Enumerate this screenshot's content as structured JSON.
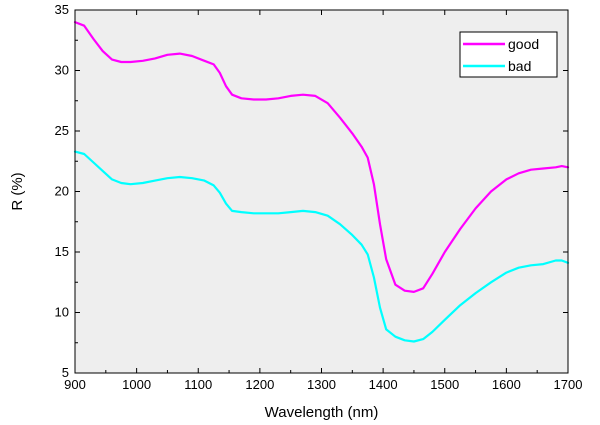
{
  "chart_data": {
    "type": "line",
    "title": "",
    "xlabel": "Wavelength (nm)",
    "ylabel": "R (%)",
    "xlim": [
      900,
      1700
    ],
    "ylim": [
      5,
      35
    ],
    "x_ticks": [
      900,
      1000,
      1100,
      1200,
      1300,
      1400,
      1500,
      1600,
      1700
    ],
    "y_ticks": [
      5,
      10,
      15,
      20,
      25,
      30,
      35
    ],
    "x_tick_labels": [
      "900",
      "1000",
      "1100",
      "1200",
      "1300",
      "1400",
      "1500",
      "1600",
      "1700"
    ],
    "y_tick_labels": [
      "5",
      "10",
      "15",
      "20",
      "25",
      "30",
      "35"
    ],
    "grid": false,
    "legend_position": "top-right",
    "plot_background": "#eeeeee",
    "series": [
      {
        "name": "good",
        "color": "#ff00ff",
        "x": [
          900,
          915,
          930,
          945,
          960,
          975,
          990,
          1010,
          1030,
          1050,
          1070,
          1090,
          1110,
          1125,
          1135,
          1145,
          1155,
          1170,
          1190,
          1210,
          1230,
          1250,
          1270,
          1290,
          1310,
          1330,
          1350,
          1365,
          1375,
          1385,
          1395,
          1405,
          1420,
          1435,
          1450,
          1465,
          1480,
          1500,
          1525,
          1550,
          1575,
          1600,
          1620,
          1640,
          1660,
          1680,
          1690,
          1700
        ],
        "values": [
          34.0,
          33.7,
          32.6,
          31.6,
          30.9,
          30.7,
          30.7,
          30.8,
          31.0,
          31.3,
          31.4,
          31.2,
          30.8,
          30.5,
          29.8,
          28.7,
          28.0,
          27.7,
          27.6,
          27.6,
          27.7,
          27.9,
          28.0,
          27.9,
          27.3,
          26.1,
          24.8,
          23.7,
          22.8,
          20.6,
          17.3,
          14.4,
          12.3,
          11.8,
          11.7,
          12.0,
          13.2,
          15.0,
          16.9,
          18.6,
          20.0,
          21.0,
          21.5,
          21.8,
          21.9,
          22.0,
          22.1,
          22.0
        ]
      },
      {
        "name": "bad",
        "color": "#00ffff",
        "x": [
          900,
          915,
          930,
          945,
          960,
          975,
          990,
          1010,
          1030,
          1050,
          1070,
          1090,
          1110,
          1125,
          1135,
          1145,
          1155,
          1170,
          1190,
          1210,
          1230,
          1250,
          1270,
          1290,
          1310,
          1330,
          1350,
          1365,
          1375,
          1385,
          1395,
          1405,
          1420,
          1435,
          1450,
          1465,
          1480,
          1500,
          1525,
          1550,
          1575,
          1600,
          1620,
          1640,
          1660,
          1680,
          1690,
          1700
        ],
        "values": [
          23.3,
          23.1,
          22.4,
          21.7,
          21.0,
          20.7,
          20.6,
          20.7,
          20.9,
          21.1,
          21.2,
          21.1,
          20.9,
          20.5,
          19.9,
          19.0,
          18.4,
          18.3,
          18.2,
          18.2,
          18.2,
          18.3,
          18.4,
          18.3,
          18.0,
          17.3,
          16.4,
          15.6,
          14.8,
          12.9,
          10.4,
          8.6,
          8.0,
          7.7,
          7.6,
          7.8,
          8.4,
          9.4,
          10.6,
          11.6,
          12.5,
          13.3,
          13.7,
          13.9,
          14.0,
          14.3,
          14.3,
          14.1
        ]
      }
    ]
  }
}
